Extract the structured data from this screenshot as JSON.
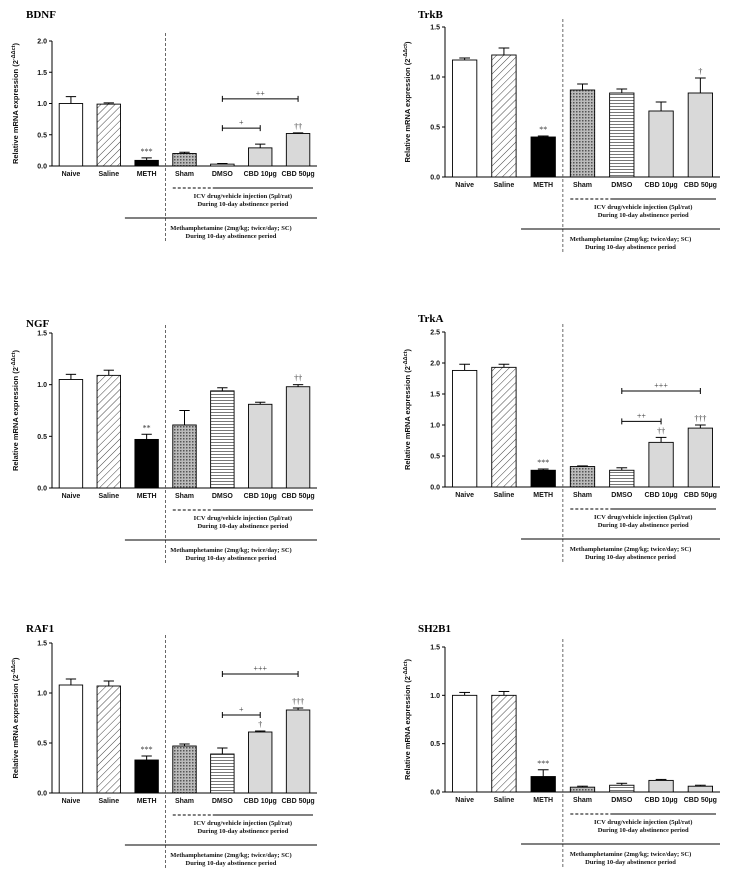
{
  "colors": {
    "meth": "#000000",
    "open": "#ffffff",
    "cbd": "#d9d9d9",
    "axis": "#000000"
  },
  "chart_data": [
    {
      "type": "bar",
      "title": "BDNF",
      "ylabel": "Relative mRNA expression (2^-ΔΔct)",
      "ylim": [
        0,
        2
      ],
      "yticks": [
        "0.0",
        "0.5",
        "1.0",
        "1.5",
        "2.0"
      ],
      "categories": [
        "Naive",
        "Saline",
        "METH",
        "Sham",
        "DMSO",
        "CBD 10µg",
        "CBD 50µg"
      ],
      "values": [
        1.0,
        0.99,
        0.09,
        0.2,
        0.03,
        0.29,
        0.52
      ],
      "errors": [
        0.11,
        0.02,
        0.04,
        0.02,
        0.01,
        0.06,
        0.01
      ],
      "significance": [
        "",
        "",
        "***",
        "",
        "",
        "",
        "††"
      ],
      "comparisons": [
        {
          "from": "DMSO",
          "to": "CBD 10µg",
          "label": "+"
        },
        {
          "from": "DMSO",
          "to": "CBD 50µg",
          "label": "++"
        }
      ],
      "icv_note": [
        "ICV drug/vehicle injection (5µl/rat)",
        "During 10-day abstinence period"
      ],
      "meth_note": [
        "Methamphetamine (2mg/kg; twice/day; SC)",
        "During 10-day abstinence period"
      ]
    },
    {
      "type": "bar",
      "title": "TrkB",
      "ylabel": "Relative mRNA expression (2^-ΔΔct)",
      "ylim": [
        0,
        1.5
      ],
      "yticks": [
        "0.0",
        "0.5",
        "1.0",
        "1.5"
      ],
      "categories": [
        "Naive",
        "Saline",
        "METH",
        "Sham",
        "DMSO",
        "CBD 10µg",
        "CBD 50µg"
      ],
      "values": [
        1.17,
        1.22,
        0.4,
        0.87,
        0.84,
        0.66,
        0.84
      ],
      "errors": [
        0.02,
        0.07,
        0.01,
        0.06,
        0.04,
        0.09,
        0.15
      ],
      "significance": [
        "",
        "",
        "**",
        "",
        "",
        "",
        "†"
      ],
      "comparisons": [],
      "icv_note": [
        "ICV drug/vehicle injection (5µl/rat)",
        "During 10-day abstinence period"
      ],
      "meth_note": [
        "Methamphetamine (2mg/kg; twice/day; SC)",
        "During 10-day abstinence period"
      ]
    },
    {
      "type": "bar",
      "title": "NGF",
      "ylabel": "Relative mRNA expression (2^-ΔΔct)",
      "ylim": [
        0,
        1.5
      ],
      "yticks": [
        "0.0",
        "0.5",
        "1.0",
        "1.5"
      ],
      "categories": [
        "Naive",
        "Saline",
        "METH",
        "Sham",
        "DMSO",
        "CBD 10µg",
        "CBD 50µg"
      ],
      "values": [
        1.05,
        1.09,
        0.47,
        0.61,
        0.94,
        0.81,
        0.98
      ],
      "errors": [
        0.05,
        0.05,
        0.05,
        0.14,
        0.03,
        0.02,
        0.02
      ],
      "significance": [
        "",
        "",
        "**",
        "",
        "",
        "",
        "††"
      ],
      "comparisons": [],
      "icv_note": [
        "ICV drug/vehicle injection (5µl/rat)",
        "During 10-day abstinence period"
      ],
      "meth_note": [
        "Methamphetamine (2mg/kg; twice/day; SC)",
        "During 10-day abstinence period"
      ]
    },
    {
      "type": "bar",
      "title": "TrkA",
      "ylabel": "Relative mRNA expression (2^-ΔΔct)",
      "ylim": [
        0,
        2.5
      ],
      "yticks": [
        "0.0",
        "0.5",
        "1.0",
        "1.5",
        "2.0",
        "2.5"
      ],
      "categories": [
        "Naive",
        "Saline",
        "METH",
        "Sham",
        "DMSO",
        "CBD 10µg",
        "CBD 50µg"
      ],
      "values": [
        1.88,
        1.93,
        0.27,
        0.33,
        0.27,
        0.72,
        0.95
      ],
      "errors": [
        0.1,
        0.05,
        0.02,
        0.01,
        0.04,
        0.08,
        0.05
      ],
      "significance": [
        "",
        "",
        "***",
        "",
        "",
        "††",
        "†††"
      ],
      "comparisons": [
        {
          "from": "DMSO",
          "to": "CBD 10µg",
          "label": "++"
        },
        {
          "from": "DMSO",
          "to": "CBD 50µg",
          "label": "+++"
        }
      ],
      "icv_note": [
        "ICV drug/vehicle injection (5µl/rat)",
        "During 10-day abstinence period"
      ],
      "meth_note": [
        "Methamphetamine (2mg/kg; twice/day; SC)",
        "During 10-day abstinence period"
      ]
    },
    {
      "type": "bar",
      "title": "RAF1",
      "ylabel": "Relative mRNA expression (2^-ΔΔct)",
      "ylim": [
        0,
        1.5
      ],
      "yticks": [
        "0.0",
        "0.5",
        "1.0",
        "1.5"
      ],
      "categories": [
        "Naive",
        "Saline",
        "METH",
        "Sham",
        "DMSO",
        "CBD 10µg",
        "CBD 50µg"
      ],
      "values": [
        1.08,
        1.07,
        0.33,
        0.47,
        0.39,
        0.61,
        0.83
      ],
      "errors": [
        0.06,
        0.05,
        0.04,
        0.02,
        0.06,
        0.01,
        0.02
      ],
      "significance": [
        "",
        "",
        "***",
        "",
        "",
        "†",
        "†††"
      ],
      "comparisons": [
        {
          "from": "DMSO",
          "to": "CBD 10µg",
          "label": "+"
        },
        {
          "from": "DMSO",
          "to": "CBD 50µg",
          "label": "+++"
        }
      ],
      "icv_note": [
        "ICV drug/vehicle injection (5µl/rat)",
        "During 10-day abstinence period"
      ],
      "meth_note": [
        "Methamphetamine (2mg/kg; twice/day; SC)",
        "During 10-day abstinence period"
      ]
    },
    {
      "type": "bar",
      "title": "SH2B1",
      "ylabel": "Relative mRNA expression (2^-ΔΔct)",
      "ylim": [
        0,
        1.5
      ],
      "yticks": [
        "0.0",
        "0.5",
        "1.0",
        "1.5"
      ],
      "categories": [
        "Naive",
        "Saline",
        "METH",
        "Sham",
        "DMSO",
        "CBD 10µg",
        "CBD 50µg"
      ],
      "values": [
        1.0,
        1.0,
        0.16,
        0.05,
        0.07,
        0.12,
        0.06
      ],
      "errors": [
        0.03,
        0.04,
        0.07,
        0.01,
        0.02,
        0.01,
        0.01
      ],
      "significance": [
        "",
        "",
        "***",
        "",
        "",
        "",
        ""
      ],
      "comparisons": [],
      "icv_note": [
        "ICV drug/vehicle injection (5µl/rat)",
        "During 10-day abstinence period"
      ],
      "meth_note": [
        "Methamphetamine (2mg/kg; twice/day; SC)",
        "During 10-day abstinence period"
      ]
    }
  ]
}
